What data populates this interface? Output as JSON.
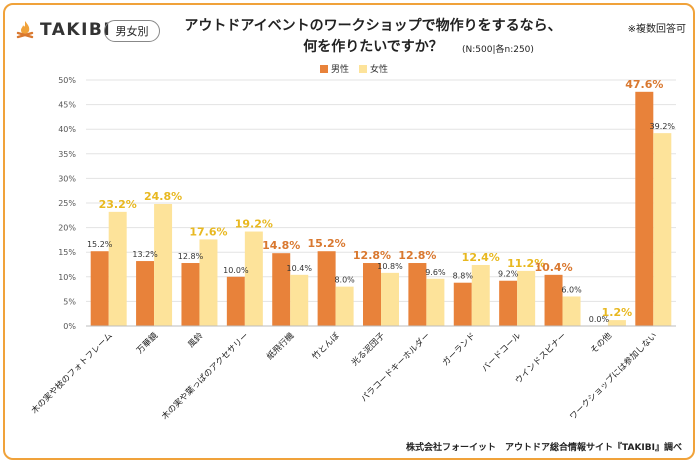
{
  "brand": {
    "name": "TAKIBI"
  },
  "badge": "男女別",
  "title_line1": "アウトドアイベントのワークショップで物作りをするなら、",
  "title_line2": "何を作りたいですか？",
  "sample_note": "(N:500|各n:250)",
  "multi_answer_note": "※複数回答可",
  "source": "株式会社フォーイット　アウトドア総合情報サイト『TAKIBI』調べ",
  "colors": {
    "male": "#E8823A",
    "female": "#FDE39A",
    "female_label": "#E8B820",
    "male_label": "#D9782F",
    "frame": "#F0A23A"
  },
  "chart_data": {
    "type": "bar",
    "categories": [
      "木の実や枝のフォトフレーム",
      "万華鏡",
      "風鈴",
      "木の実や葉っぱのアクセサリー",
      "紙飛行機",
      "竹とんぼ",
      "光る泥団子",
      "パラコードキーホルダー",
      "ガーランド",
      "バードコール",
      "ウインドスピナー",
      "その他",
      "ワークショップには参加しない"
    ],
    "series": [
      {
        "name": "男性",
        "values": [
          15.2,
          13.2,
          12.8,
          10.0,
          14.8,
          15.2,
          12.8,
          12.8,
          8.8,
          9.2,
          10.4,
          0.0,
          47.6
        ]
      },
      {
        "name": "女性",
        "values": [
          23.2,
          24.8,
          17.6,
          19.2,
          10.4,
          8.0,
          10.8,
          9.6,
          12.4,
          11.2,
          6.0,
          1.2,
          39.2
        ]
      }
    ],
    "ylim": [
      0,
      50
    ],
    "yticks": [
      "0%",
      "5%",
      "10%",
      "15%",
      "20%",
      "25%",
      "30%",
      "35%",
      "40%",
      "45%",
      "50%"
    ],
    "value_labels_male": [
      "15.2%",
      "13.2%",
      "12.8%",
      "10.0%",
      "14.8%",
      "15.2%",
      "12.8%",
      "12.8%",
      "8.8%",
      "9.2%",
      "10.4%",
      "0.0%",
      "47.6%"
    ],
    "value_labels_female": [
      "23.2%",
      "24.8%",
      "17.6%",
      "19.2%",
      "10.4%",
      "8.0%",
      "10.8%",
      "9.6%",
      "12.4%",
      "11.2%",
      "6.0%",
      "1.2%",
      "39.2%"
    ],
    "highlight_male": [
      false,
      false,
      false,
      false,
      true,
      true,
      true,
      true,
      false,
      false,
      true,
      false,
      true
    ],
    "highlight_female": [
      true,
      true,
      true,
      true,
      false,
      false,
      false,
      false,
      true,
      true,
      false,
      true,
      false
    ],
    "grid": true,
    "legend_position": "top-center"
  }
}
